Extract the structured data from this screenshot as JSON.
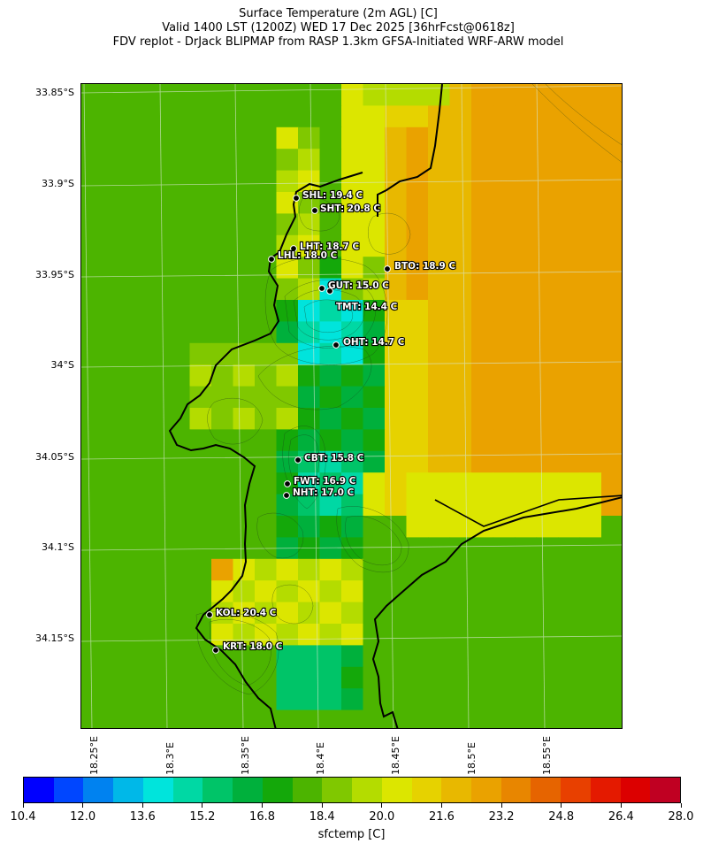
{
  "title": {
    "line1": "Surface Temperature (2m AGL) [C]",
    "line2": "Valid 1400 LST (1200Z) WED 17 Dec 2025 [36hrFcst@0618z]",
    "line3": "FDV replot - DrJack BLIPMAP from RASP 1.3km GFSA-Initiated WRF-ARW model"
  },
  "lat_labels": [
    "33.85°S",
    "33.9°S",
    "33.95°S",
    "34°S",
    "34.05°S",
    "34.1°S",
    "34.15°S"
  ],
  "lon_labels": [
    "18.25°E",
    "18.3°E",
    "18.35°E",
    "18.4°E",
    "18.45°E",
    "18.5°E",
    "18.55°E"
  ],
  "stations": [
    {
      "label": "SHL: 19.4 C"
    },
    {
      "label": "SHT: 20.8 C"
    },
    {
      "label": "LHT: 18.7 C"
    },
    {
      "label": "LHL: 18.0 C"
    },
    {
      "label": "BTO: 18.9 C"
    },
    {
      "label": "GUT: 15.0 C"
    },
    {
      "label": "TMT: 14.4 C"
    },
    {
      "label": "OHT: 14.7 C"
    },
    {
      "label": "CBT: 15.8 C"
    },
    {
      "label": "FWT: 16.9 C"
    },
    {
      "label": "NHT: 17.0 C"
    },
    {
      "label": "KOL: 20.4 C"
    },
    {
      "label": "KRT: 18.0 C"
    }
  ],
  "colorbar": {
    "title": "sfctemp [C]",
    "tick_labels": [
      "10.4",
      "12.0",
      "13.6",
      "15.2",
      "16.8",
      "18.4",
      "20.0",
      "21.6",
      "23.2",
      "24.8",
      "26.4",
      "28.0"
    ],
    "colors": [
      "#0000ff",
      "#0046ff",
      "#0082f0",
      "#00b8e8",
      "#00e4dc",
      "#00d8a4",
      "#00c468",
      "#00b03c",
      "#14a80a",
      "#4cb400",
      "#80c800",
      "#b4dc00",
      "#dce600",
      "#e6d200",
      "#e8b800",
      "#eaa200",
      "#e88600",
      "#e66400",
      "#e84000",
      "#e41a00",
      "#dc0000",
      "#c00022"
    ]
  }
}
